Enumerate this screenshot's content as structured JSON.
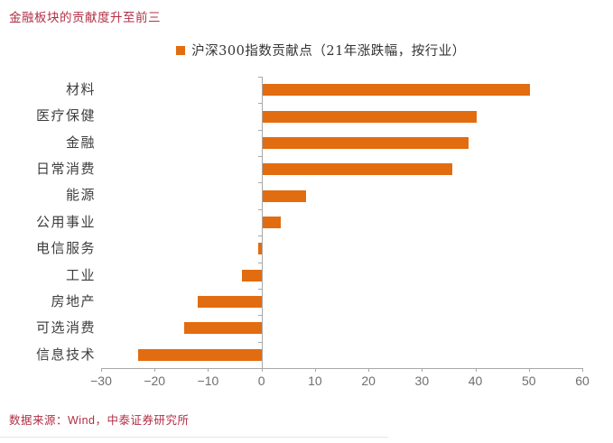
{
  "title": "金融板块的贡献度升至前三",
  "footer": "数据来源：Wind，中泰证券研究所",
  "colors": {
    "accent": "#e26c10",
    "heading": "#b22e44",
    "axis": "#a8a8a8",
    "tick_label": "#6f6f6f",
    "category_label": "#3d3d3d"
  },
  "chart_data": {
    "type": "bar",
    "orientation": "horizontal",
    "title": "金融板块的贡献度升至前三",
    "legend": "沪深300指数贡献点（21年涨跌幅，按行业）",
    "legend_position": "top-center",
    "categories": [
      "材料",
      "医疗保健",
      "金融",
      "日常消费",
      "能源",
      "公用事业",
      "电信服务",
      "工业",
      "房地产",
      "可选消费",
      "信息技术"
    ],
    "values": [
      50.0,
      40.0,
      38.5,
      35.6,
      8.1,
      3.5,
      -0.6,
      -3.6,
      -12.0,
      -14.5,
      -23.1
    ],
    "xlabel": "",
    "ylabel": "",
    "xlim": [
      -30,
      60
    ],
    "xticks": [
      -30,
      -20,
      -10,
      0,
      10,
      20,
      30,
      40,
      50,
      60
    ],
    "grid": false,
    "bar_color": "#e26c10",
    "source_note": "数据来源：Wind，中泰证券研究所"
  }
}
